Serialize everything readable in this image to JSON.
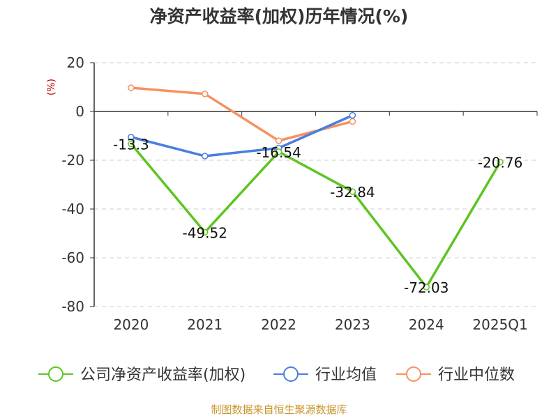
{
  "chart_data": {
    "type": "line",
    "title": "净资产收益率(加权)历年情况(%)",
    "ylabel": "(%)",
    "xlabel": "",
    "categories": [
      "2020",
      "2021",
      "2022",
      "2023",
      "2024",
      "2025Q1"
    ],
    "ylim": [
      -80,
      20
    ],
    "yticks": [
      20,
      0,
      -20,
      -40,
      -60,
      -80
    ],
    "grid": true,
    "legend_position": "bottom",
    "series": [
      {
        "name": "公司净资产收益率(加权)",
        "color": "#5ec422",
        "values": [
          -13.3,
          -49.52,
          -16.54,
          -32.84,
          -72.03,
          -20.76
        ],
        "labels": [
          "-13.3",
          "-49.52",
          "-16.54",
          "-32.84",
          "-72.03",
          "-20.76"
        ]
      },
      {
        "name": "行业均值",
        "color": "#4a7ede",
        "values": [
          -10.5,
          -18.3,
          -15.0,
          -1.6,
          null,
          null
        ]
      },
      {
        "name": "行业中位数",
        "color": "#f99060",
        "values": [
          9.7,
          7.2,
          -12.0,
          -4.1,
          null,
          null
        ]
      }
    ]
  },
  "source": "制图数据来自恒生聚源数据库"
}
